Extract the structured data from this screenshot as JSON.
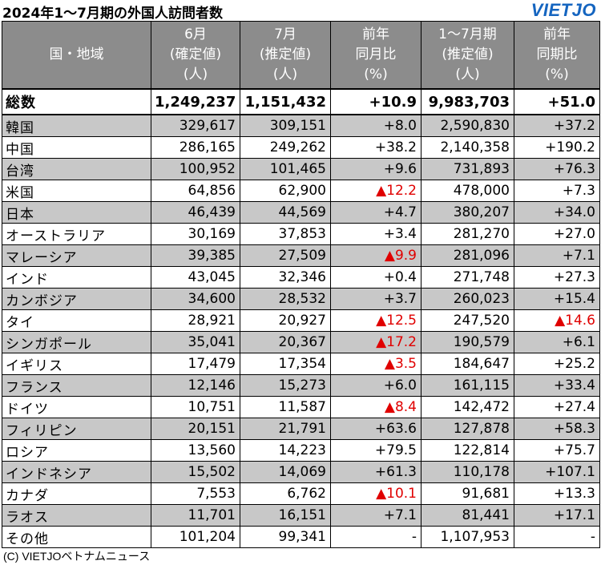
{
  "title": "2024年1～7月期の外国人訪問者数",
  "logo": "VIETJO",
  "columns": [
    {
      "lines": [
        "国・地域"
      ]
    },
    {
      "lines": [
        "6月",
        "(確定値)",
        "(人)"
      ]
    },
    {
      "lines": [
        "7月",
        "(推定値)",
        "(人)"
      ]
    },
    {
      "lines": [
        "前年",
        "同月比",
        "(%)"
      ]
    },
    {
      "lines": [
        "1～7月期",
        "(推定値)",
        "(人)"
      ]
    },
    {
      "lines": [
        "前年",
        "同期比",
        "(%)"
      ]
    }
  ],
  "total": {
    "name": "総数",
    "jun": "1,249,237",
    "jul": "1,151,432",
    "yoy_month": "+10.9",
    "ytd": "9,983,703",
    "yoy_period": "+51.0"
  },
  "rows": [
    {
      "name": "韓国",
      "jun": "329,617",
      "jul": "309,151",
      "yoy_month": "+8.0",
      "ytd": "2,590,830",
      "yoy_period": "+37.2"
    },
    {
      "name": "中国",
      "jun": "286,165",
      "jul": "249,262",
      "yoy_month": "+38.2",
      "ytd": "2,140,358",
      "yoy_period": "+190.2"
    },
    {
      "name": "台湾",
      "jun": "100,952",
      "jul": "101,465",
      "yoy_month": "+9.6",
      "ytd": "731,893",
      "yoy_period": "+76.3"
    },
    {
      "name": "米国",
      "jun": "64,856",
      "jul": "62,900",
      "yoy_month": "▲12.2",
      "ytd": "478,000",
      "yoy_period": "+7.3"
    },
    {
      "name": "日本",
      "jun": "46,439",
      "jul": "44,569",
      "yoy_month": "+4.7",
      "ytd": "380,207",
      "yoy_period": "+34.0"
    },
    {
      "name": "オーストラリア",
      "jun": "30,169",
      "jul": "37,853",
      "yoy_month": "+3.4",
      "ytd": "281,270",
      "yoy_period": "+27.0"
    },
    {
      "name": "マレーシア",
      "jun": "39,385",
      "jul": "27,509",
      "yoy_month": "▲9.9",
      "ytd": "281,096",
      "yoy_period": "+7.1"
    },
    {
      "name": "インド",
      "jun": "43,045",
      "jul": "32,346",
      "yoy_month": "+0.4",
      "ytd": "271,748",
      "yoy_period": "+27.3"
    },
    {
      "name": "カンボジア",
      "jun": "34,600",
      "jul": "28,532",
      "yoy_month": "+3.7",
      "ytd": "260,023",
      "yoy_period": "+15.4"
    },
    {
      "name": "タイ",
      "jun": "28,921",
      "jul": "20,927",
      "yoy_month": "▲12.5",
      "ytd": "247,520",
      "yoy_period": "▲14.6"
    },
    {
      "name": "シンガポール",
      "jun": "35,041",
      "jul": "20,367",
      "yoy_month": "▲17.2",
      "ytd": "190,579",
      "yoy_period": "+6.1"
    },
    {
      "name": "イギリス",
      "jun": "17,479",
      "jul": "17,354",
      "yoy_month": "▲3.5",
      "ytd": "184,647",
      "yoy_period": "+25.2"
    },
    {
      "name": "フランス",
      "jun": "12,146",
      "jul": "15,273",
      "yoy_month": "+6.0",
      "ytd": "161,115",
      "yoy_period": "+33.4"
    },
    {
      "name": "ドイツ",
      "jun": "10,751",
      "jul": "11,587",
      "yoy_month": "▲8.4",
      "ytd": "142,472",
      "yoy_period": "+27.4"
    },
    {
      "name": "フィリピン",
      "jun": "20,151",
      "jul": "21,791",
      "yoy_month": "+63.6",
      "ytd": "127,878",
      "yoy_period": "+58.3"
    },
    {
      "name": "ロシア",
      "jun": "13,560",
      "jul": "14,223",
      "yoy_month": "+79.5",
      "ytd": "122,814",
      "yoy_period": "+75.7"
    },
    {
      "name": "インドネシア",
      "jun": "15,502",
      "jul": "14,069",
      "yoy_month": "+61.3",
      "ytd": "110,178",
      "yoy_period": "+107.1"
    },
    {
      "name": "カナダ",
      "jun": "7,553",
      "jul": "6,762",
      "yoy_month": "▲10.1",
      "ytd": "91,681",
      "yoy_period": "+13.3"
    },
    {
      "name": "ラオス",
      "jun": "11,701",
      "jul": "16,151",
      "yoy_month": "+7.1",
      "ytd": "81,441",
      "yoy_period": "+17.1"
    },
    {
      "name": "その他",
      "jun": "101,204",
      "jul": "99,341",
      "yoy_month": "-",
      "ytd": "1,107,953",
      "yoy_period": "-"
    }
  ],
  "footer": "(C) VIETJOベトナムニュース",
  "colors": {
    "header_bg": "#8c8c8c",
    "row_gray": "#c8c8c8",
    "negative": "#e00000",
    "logo": "#1565c0"
  }
}
